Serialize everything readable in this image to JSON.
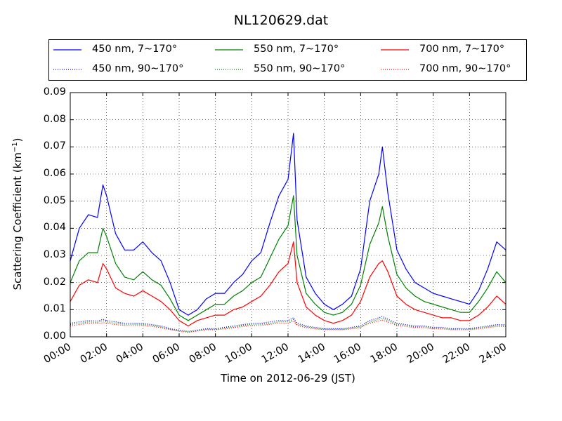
{
  "chart_data": {
    "type": "line",
    "title": "NL120629.dat",
    "xlabel": "Time on 2012-06-29 (JST)",
    "ylabel": "Scattering Coefficient (km",
    "ylabel_sup": "−1",
    "ylabel_suffix": ")",
    "xlim": [
      0,
      24
    ],
    "ylim": [
      0,
      0.09
    ],
    "grid": true,
    "legend_placement": "top",
    "xtick_labels": [
      "00:00",
      "02:00",
      "04:00",
      "06:00",
      "08:00",
      "10:00",
      "12:00",
      "14:00",
      "16:00",
      "18:00",
      "20:00",
      "22:00",
      "24:00"
    ],
    "ytick_labels": [
      "0.00",
      "0.01",
      "0.02",
      "0.03",
      "0.04",
      "0.05",
      "0.06",
      "0.07",
      "0.08",
      "0.09"
    ],
    "x": [
      0,
      0.5,
      1,
      1.5,
      1.8,
      2,
      2.5,
      3,
      3.5,
      4,
      4.5,
      5,
      5.5,
      6,
      6.5,
      7,
      7.5,
      8,
      8.5,
      9,
      9.5,
      10,
      10.5,
      11,
      11.5,
      12,
      12.3,
      12.5,
      13,
      13.5,
      14,
      14.5,
      15,
      15.5,
      16,
      16.5,
      17,
      17.2,
      17.5,
      18,
      18.5,
      19,
      19.5,
      20,
      20.5,
      21,
      21.5,
      22,
      22.5,
      23,
      23.5,
      24
    ],
    "series": [
      {
        "name": "450 nm, 7∼170°",
        "color": "#0000ff",
        "style": "solid",
        "values": [
          0.028,
          0.04,
          0.045,
          0.044,
          0.056,
          0.052,
          0.038,
          0.032,
          0.032,
          0.035,
          0.031,
          0.028,
          0.02,
          0.01,
          0.008,
          0.01,
          0.014,
          0.016,
          0.016,
          0.02,
          0.023,
          0.028,
          0.031,
          0.042,
          0.052,
          0.058,
          0.075,
          0.043,
          0.022,
          0.016,
          0.012,
          0.01,
          0.012,
          0.015,
          0.025,
          0.05,
          0.06,
          0.07,
          0.053,
          0.032,
          0.025,
          0.02,
          0.018,
          0.016,
          0.015,
          0.014,
          0.013,
          0.012,
          0.017,
          0.025,
          0.035,
          0.032
        ]
      },
      {
        "name": "450 nm, 90∼170°",
        "color": "#0000ff",
        "style": "dotted",
        "values": [
          0.005,
          0.0055,
          0.006,
          0.0058,
          0.0065,
          0.006,
          0.0055,
          0.005,
          0.005,
          0.005,
          0.0045,
          0.004,
          0.003,
          0.0025,
          0.002,
          0.0025,
          0.003,
          0.003,
          0.0035,
          0.004,
          0.0045,
          0.005,
          0.005,
          0.0055,
          0.006,
          0.006,
          0.007,
          0.005,
          0.004,
          0.0035,
          0.003,
          0.003,
          0.003,
          0.0035,
          0.004,
          0.006,
          0.007,
          0.0075,
          0.0065,
          0.005,
          0.0045,
          0.004,
          0.004,
          0.0035,
          0.0035,
          0.003,
          0.003,
          0.003,
          0.0035,
          0.004,
          0.0045,
          0.0045
        ]
      },
      {
        "name": "550 nm, 7∼170°",
        "color": "#008000",
        "style": "solid",
        "values": [
          0.02,
          0.028,
          0.031,
          0.031,
          0.04,
          0.037,
          0.027,
          0.022,
          0.021,
          0.024,
          0.021,
          0.019,
          0.014,
          0.008,
          0.006,
          0.008,
          0.01,
          0.012,
          0.012,
          0.015,
          0.017,
          0.02,
          0.022,
          0.029,
          0.036,
          0.041,
          0.052,
          0.03,
          0.016,
          0.012,
          0.009,
          0.008,
          0.009,
          0.012,
          0.019,
          0.034,
          0.042,
          0.048,
          0.037,
          0.023,
          0.018,
          0.015,
          0.013,
          0.012,
          0.011,
          0.01,
          0.009,
          0.009,
          0.013,
          0.018,
          0.024,
          0.02
        ]
      },
      {
        "name": "550 nm, 90∼170°",
        "color": "#008000",
        "style": "dotted",
        "values": [
          0.0045,
          0.005,
          0.0055,
          0.0053,
          0.006,
          0.0055,
          0.005,
          0.0046,
          0.0046,
          0.0046,
          0.0042,
          0.0037,
          0.0028,
          0.0023,
          0.0018,
          0.0023,
          0.0028,
          0.0028,
          0.0032,
          0.0037,
          0.0042,
          0.0046,
          0.0046,
          0.005,
          0.0055,
          0.0055,
          0.0064,
          0.0046,
          0.0037,
          0.0032,
          0.0028,
          0.0028,
          0.0028,
          0.0032,
          0.0037,
          0.0055,
          0.0064,
          0.0069,
          0.006,
          0.0046,
          0.0042,
          0.0037,
          0.0037,
          0.0032,
          0.0032,
          0.0028,
          0.0028,
          0.0028,
          0.0032,
          0.0037,
          0.0042,
          0.0042
        ]
      },
      {
        "name": "700 nm, 7∼170°",
        "color": "#ff0000",
        "style": "solid",
        "values": [
          0.013,
          0.019,
          0.021,
          0.02,
          0.027,
          0.025,
          0.018,
          0.016,
          0.015,
          0.017,
          0.015,
          0.013,
          0.01,
          0.006,
          0.004,
          0.006,
          0.007,
          0.008,
          0.008,
          0.01,
          0.011,
          0.013,
          0.015,
          0.019,
          0.024,
          0.027,
          0.035,
          0.02,
          0.011,
          0.008,
          0.006,
          0.005,
          0.006,
          0.008,
          0.013,
          0.022,
          0.027,
          0.028,
          0.024,
          0.015,
          0.012,
          0.01,
          0.009,
          0.008,
          0.007,
          0.007,
          0.006,
          0.006,
          0.008,
          0.011,
          0.015,
          0.012
        ]
      },
      {
        "name": "700 nm, 90∼170°",
        "color": "#ff0000",
        "style": "dotted",
        "values": [
          0.004,
          0.0045,
          0.005,
          0.0048,
          0.0052,
          0.005,
          0.0045,
          0.0042,
          0.0042,
          0.0042,
          0.0038,
          0.0034,
          0.0026,
          0.0021,
          0.0016,
          0.0021,
          0.0026,
          0.0026,
          0.0029,
          0.0034,
          0.0038,
          0.0042,
          0.0042,
          0.0046,
          0.005,
          0.005,
          0.0058,
          0.0042,
          0.0034,
          0.0029,
          0.0026,
          0.0026,
          0.0026,
          0.0029,
          0.0034,
          0.005,
          0.0058,
          0.0062,
          0.0054,
          0.0042,
          0.0038,
          0.0034,
          0.0034,
          0.0029,
          0.0029,
          0.0026,
          0.0026,
          0.0026,
          0.0029,
          0.0034,
          0.0038,
          0.0038
        ]
      }
    ]
  }
}
